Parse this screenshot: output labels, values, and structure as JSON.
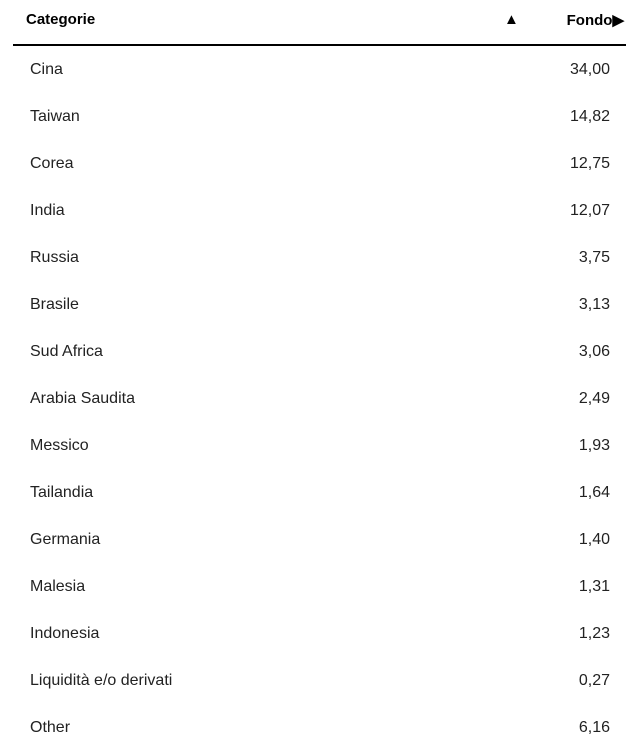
{
  "header": {
    "category": "Categorie",
    "sort_icon": "▲",
    "fund": "Fondo",
    "fund_arrow": "▶"
  },
  "rows": [
    {
      "name": "Cina",
      "value": "34,00"
    },
    {
      "name": "Taiwan",
      "value": "14,82"
    },
    {
      "name": "Corea",
      "value": "12,75"
    },
    {
      "name": "India",
      "value": "12,07"
    },
    {
      "name": "Russia",
      "value": "3,75"
    },
    {
      "name": "Brasile",
      "value": "3,13"
    },
    {
      "name": "Sud Africa",
      "value": "3,06"
    },
    {
      "name": "Arabia Saudita",
      "value": "2,49"
    },
    {
      "name": "Messico",
      "value": "1,93"
    },
    {
      "name": "Tailandia",
      "value": "1,64"
    },
    {
      "name": "Germania",
      "value": "1,40"
    },
    {
      "name": "Malesia",
      "value": "1,31"
    },
    {
      "name": "Indonesia",
      "value": "1,23"
    },
    {
      "name": "Liquidità e/o derivati",
      "value": "0,27"
    },
    {
      "name": "Other",
      "value": "6,16"
    }
  ]
}
